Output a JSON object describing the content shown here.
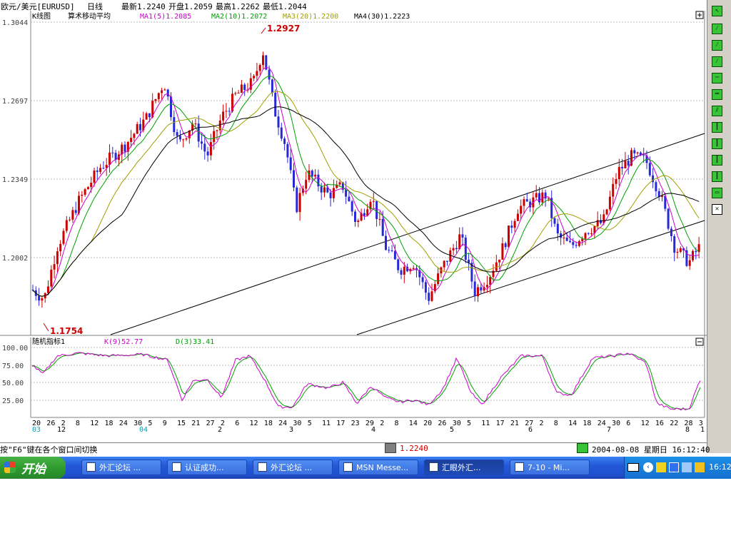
{
  "header": {
    "symbol": "欧元/美元[EURUSD]",
    "period": "日线",
    "latest": "最新1.2240",
    "open": "开盘1.2059",
    "high": "最高1.2262",
    "low": "最低1.2044"
  },
  "main_panel": {
    "title": "K线图",
    "indicator": "算术移动平均",
    "ma1": "MA1(5)1.2085",
    "ma2": "MA2(10)1.2072",
    "ma3": "MA3(20)1.2200",
    "ma4": "MA4(30)1.2223",
    "ma_colors": [
      "#cc00cc",
      "#00a000",
      "#a0a000",
      "#000000"
    ],
    "y_ticks": [
      "1.3044",
      "1.2697",
      "1.2349",
      "1.2002"
    ],
    "high_label": "1.2927",
    "low_label": "1.1754",
    "up_color": "#cc0000",
    "down_color": "#2828d8"
  },
  "sub_panel": {
    "title": "随机指标1",
    "k": "K(9)52.77",
    "d": "D(3)33.41",
    "y_ticks": [
      "100.00",
      "75.00",
      "50.00",
      "25.00"
    ]
  },
  "xaxis": {
    "days": [
      "20",
      "26",
      "2",
      "8",
      "12",
      "18",
      "24",
      "30",
      "5",
      "9",
      "15",
      "21",
      "27",
      "2",
      "6",
      "12",
      "18",
      "24",
      "30",
      "5",
      "11",
      "17",
      "23",
      "29",
      "2",
      "8",
      "14",
      "20",
      "26",
      "30",
      "5",
      "11",
      "17",
      "21",
      "27",
      "2",
      "8",
      "14",
      "18",
      "24",
      "30",
      "6",
      "12",
      "16",
      "22",
      "28",
      "3"
    ],
    "months": [
      "03",
      "12",
      "04",
      "2",
      "3",
      "4",
      "5",
      "6",
      "7",
      "8",
      "1"
    ]
  },
  "status": {
    "hint": "按\"F6\"键在各个窗口间切换",
    "price": "1.2240",
    "datetime": "2004-08-08 星期日 16:12:40"
  },
  "taskbar": {
    "start_label": "开始",
    "tasks": [
      "外汇论坛 ...",
      "认证成功...",
      "外汇论坛 ...",
      "MSN Messe...",
      "汇眼外汇...",
      "7-10 - Mi..."
    ],
    "clock": "16:12"
  }
}
